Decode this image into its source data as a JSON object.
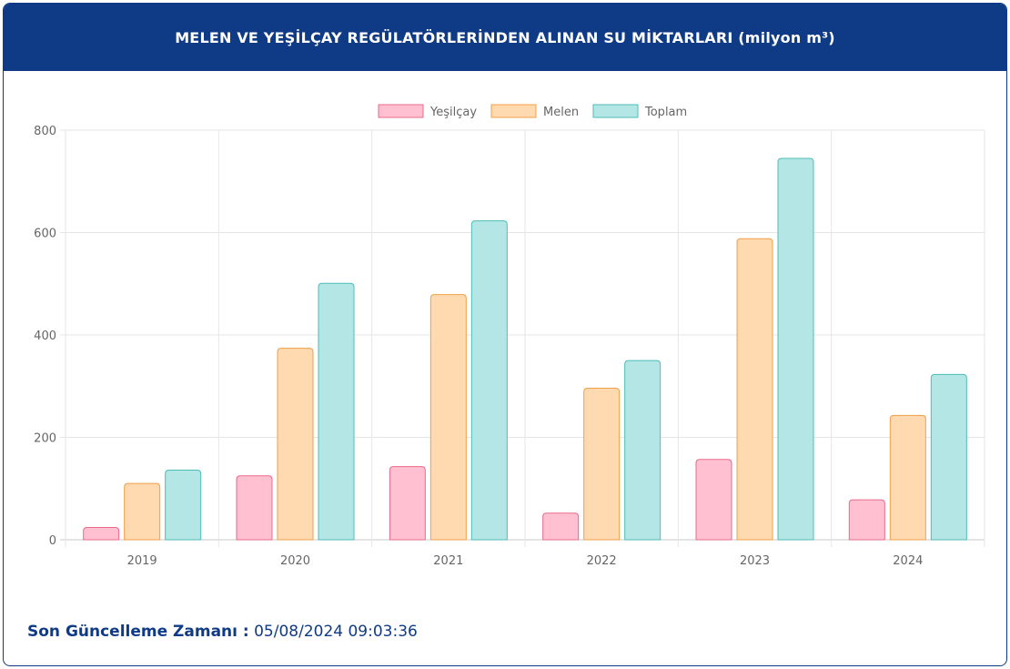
{
  "header": {
    "title": "MELEN VE YEŞİLÇAY REGÜLATÖRLERİNDEN ALINAN SU MİKTARLARI (milyon m³)"
  },
  "chart_data": {
    "type": "bar",
    "categories": [
      "2019",
      "2020",
      "2021",
      "2022",
      "2023",
      "2024"
    ],
    "series": [
      {
        "name": "Yeşilçay",
        "values": [
          24,
          125,
          143,
          52,
          157,
          78
        ],
        "fill": "#ffc1d1",
        "stroke": "#e86a8a"
      },
      {
        "name": "Melen",
        "values": [
          110,
          374,
          479,
          296,
          588,
          243
        ],
        "fill": "#ffd9b0",
        "stroke": "#f0a049"
      },
      {
        "name": "Toplam",
        "values": [
          136,
          501,
          623,
          350,
          745,
          323
        ],
        "fill": "#b5e6e6",
        "stroke": "#4dbdb8"
      }
    ],
    "ylim": [
      0,
      800
    ],
    "yticks": [
      "0",
      "200",
      "400",
      "600",
      "800"
    ],
    "grid": true,
    "legend_position": "top"
  },
  "footer": {
    "label": "Son Güncelleme Zamanı :",
    "value": "05/08/2024 09:03:36"
  }
}
